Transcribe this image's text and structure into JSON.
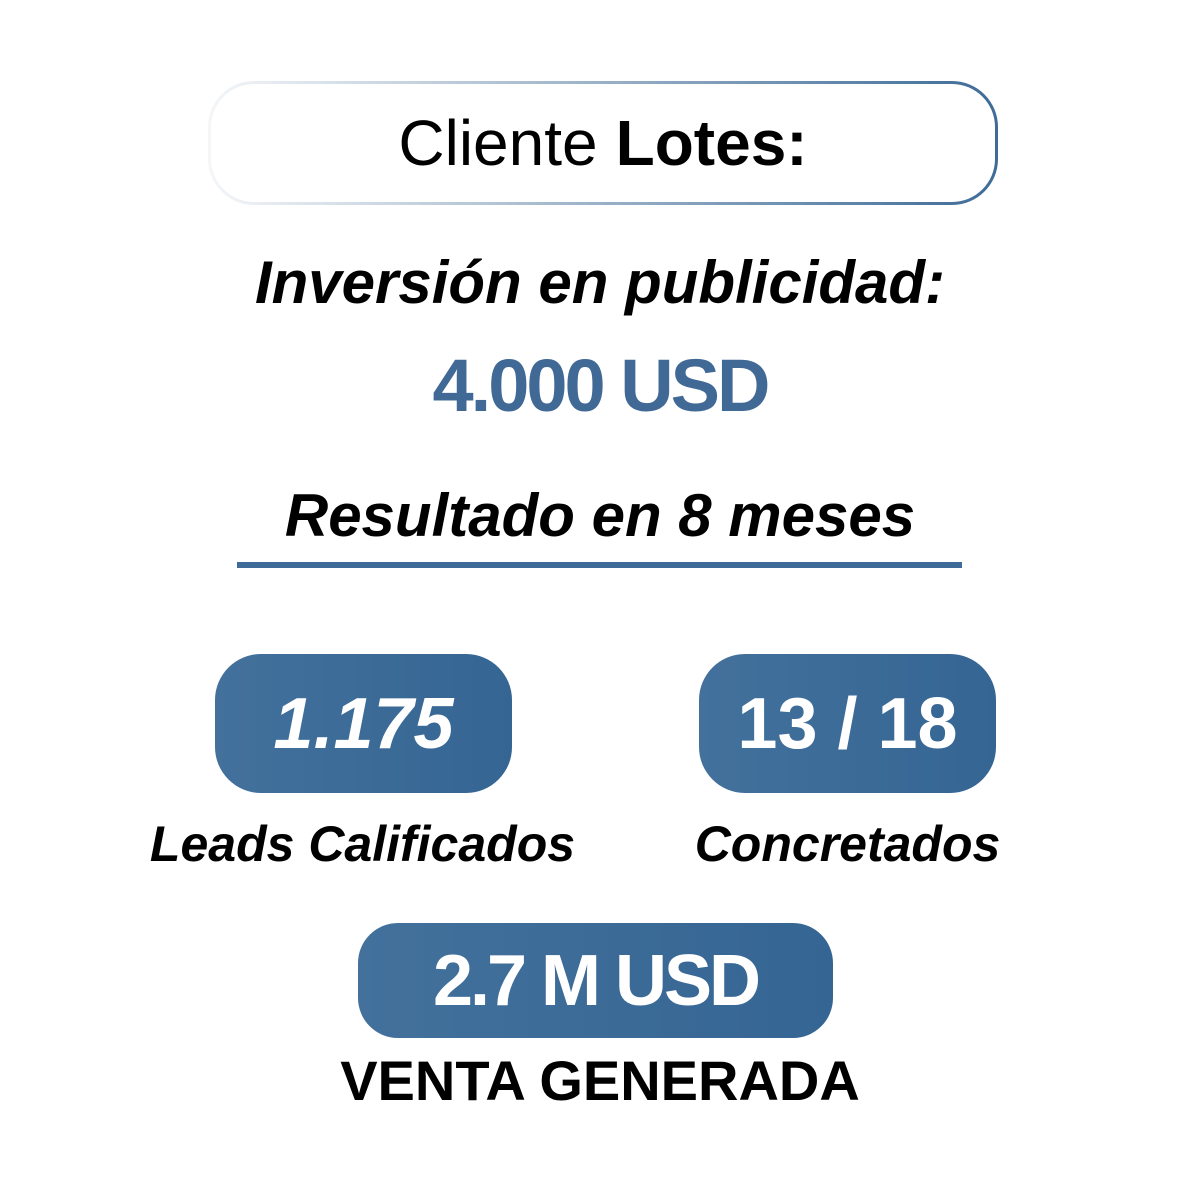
{
  "header": {
    "title_prefix": "Cliente",
    "title_bold": "Lotes:"
  },
  "investment": {
    "label": "Inversión en publicidad:",
    "amount": "4.000 USD"
  },
  "result": {
    "label": "Resultado en 8 meses"
  },
  "stats": [
    {
      "value": "1.175",
      "label": "Leads Calificados"
    },
    {
      "value": "13 / 18",
      "label": "Concretados"
    }
  ],
  "sales": {
    "value": "2.7 M USD",
    "label": "VENTA GENERADA"
  },
  "colors": {
    "accent": "#3e6b97",
    "text": "#000000"
  }
}
